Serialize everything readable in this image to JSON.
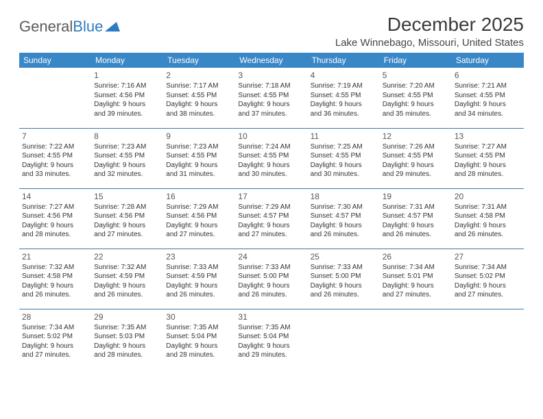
{
  "logo": {
    "part1": "General",
    "part2": "Blue"
  },
  "title": "December 2025",
  "location": "Lake Winnebago, Missouri, United States",
  "day_headers": [
    "Sunday",
    "Monday",
    "Tuesday",
    "Wednesday",
    "Thursday",
    "Friday",
    "Saturday"
  ],
  "colors": {
    "header_bg": "#3a87c7",
    "rule": "#3a78a8",
    "logo_blue": "#2d7bc0"
  },
  "weeks": [
    [
      null,
      {
        "n": "1",
        "sr": "Sunrise: 7:16 AM",
        "ss": "Sunset: 4:56 PM",
        "d1": "Daylight: 9 hours",
        "d2": "and 39 minutes."
      },
      {
        "n": "2",
        "sr": "Sunrise: 7:17 AM",
        "ss": "Sunset: 4:55 PM",
        "d1": "Daylight: 9 hours",
        "d2": "and 38 minutes."
      },
      {
        "n": "3",
        "sr": "Sunrise: 7:18 AM",
        "ss": "Sunset: 4:55 PM",
        "d1": "Daylight: 9 hours",
        "d2": "and 37 minutes."
      },
      {
        "n": "4",
        "sr": "Sunrise: 7:19 AM",
        "ss": "Sunset: 4:55 PM",
        "d1": "Daylight: 9 hours",
        "d2": "and 36 minutes."
      },
      {
        "n": "5",
        "sr": "Sunrise: 7:20 AM",
        "ss": "Sunset: 4:55 PM",
        "d1": "Daylight: 9 hours",
        "d2": "and 35 minutes."
      },
      {
        "n": "6",
        "sr": "Sunrise: 7:21 AM",
        "ss": "Sunset: 4:55 PM",
        "d1": "Daylight: 9 hours",
        "d2": "and 34 minutes."
      }
    ],
    [
      {
        "n": "7",
        "sr": "Sunrise: 7:22 AM",
        "ss": "Sunset: 4:55 PM",
        "d1": "Daylight: 9 hours",
        "d2": "and 33 minutes."
      },
      {
        "n": "8",
        "sr": "Sunrise: 7:23 AM",
        "ss": "Sunset: 4:55 PM",
        "d1": "Daylight: 9 hours",
        "d2": "and 32 minutes."
      },
      {
        "n": "9",
        "sr": "Sunrise: 7:23 AM",
        "ss": "Sunset: 4:55 PM",
        "d1": "Daylight: 9 hours",
        "d2": "and 31 minutes."
      },
      {
        "n": "10",
        "sr": "Sunrise: 7:24 AM",
        "ss": "Sunset: 4:55 PM",
        "d1": "Daylight: 9 hours",
        "d2": "and 30 minutes."
      },
      {
        "n": "11",
        "sr": "Sunrise: 7:25 AM",
        "ss": "Sunset: 4:55 PM",
        "d1": "Daylight: 9 hours",
        "d2": "and 30 minutes."
      },
      {
        "n": "12",
        "sr": "Sunrise: 7:26 AM",
        "ss": "Sunset: 4:55 PM",
        "d1": "Daylight: 9 hours",
        "d2": "and 29 minutes."
      },
      {
        "n": "13",
        "sr": "Sunrise: 7:27 AM",
        "ss": "Sunset: 4:55 PM",
        "d1": "Daylight: 9 hours",
        "d2": "and 28 minutes."
      }
    ],
    [
      {
        "n": "14",
        "sr": "Sunrise: 7:27 AM",
        "ss": "Sunset: 4:56 PM",
        "d1": "Daylight: 9 hours",
        "d2": "and 28 minutes."
      },
      {
        "n": "15",
        "sr": "Sunrise: 7:28 AM",
        "ss": "Sunset: 4:56 PM",
        "d1": "Daylight: 9 hours",
        "d2": "and 27 minutes."
      },
      {
        "n": "16",
        "sr": "Sunrise: 7:29 AM",
        "ss": "Sunset: 4:56 PM",
        "d1": "Daylight: 9 hours",
        "d2": "and 27 minutes."
      },
      {
        "n": "17",
        "sr": "Sunrise: 7:29 AM",
        "ss": "Sunset: 4:57 PM",
        "d1": "Daylight: 9 hours",
        "d2": "and 27 minutes."
      },
      {
        "n": "18",
        "sr": "Sunrise: 7:30 AM",
        "ss": "Sunset: 4:57 PM",
        "d1": "Daylight: 9 hours",
        "d2": "and 26 minutes."
      },
      {
        "n": "19",
        "sr": "Sunrise: 7:31 AM",
        "ss": "Sunset: 4:57 PM",
        "d1": "Daylight: 9 hours",
        "d2": "and 26 minutes."
      },
      {
        "n": "20",
        "sr": "Sunrise: 7:31 AM",
        "ss": "Sunset: 4:58 PM",
        "d1": "Daylight: 9 hours",
        "d2": "and 26 minutes."
      }
    ],
    [
      {
        "n": "21",
        "sr": "Sunrise: 7:32 AM",
        "ss": "Sunset: 4:58 PM",
        "d1": "Daylight: 9 hours",
        "d2": "and 26 minutes."
      },
      {
        "n": "22",
        "sr": "Sunrise: 7:32 AM",
        "ss": "Sunset: 4:59 PM",
        "d1": "Daylight: 9 hours",
        "d2": "and 26 minutes."
      },
      {
        "n": "23",
        "sr": "Sunrise: 7:33 AM",
        "ss": "Sunset: 4:59 PM",
        "d1": "Daylight: 9 hours",
        "d2": "and 26 minutes."
      },
      {
        "n": "24",
        "sr": "Sunrise: 7:33 AM",
        "ss": "Sunset: 5:00 PM",
        "d1": "Daylight: 9 hours",
        "d2": "and 26 minutes."
      },
      {
        "n": "25",
        "sr": "Sunrise: 7:33 AM",
        "ss": "Sunset: 5:00 PM",
        "d1": "Daylight: 9 hours",
        "d2": "and 26 minutes."
      },
      {
        "n": "26",
        "sr": "Sunrise: 7:34 AM",
        "ss": "Sunset: 5:01 PM",
        "d1": "Daylight: 9 hours",
        "d2": "and 27 minutes."
      },
      {
        "n": "27",
        "sr": "Sunrise: 7:34 AM",
        "ss": "Sunset: 5:02 PM",
        "d1": "Daylight: 9 hours",
        "d2": "and 27 minutes."
      }
    ],
    [
      {
        "n": "28",
        "sr": "Sunrise: 7:34 AM",
        "ss": "Sunset: 5:02 PM",
        "d1": "Daylight: 9 hours",
        "d2": "and 27 minutes."
      },
      {
        "n": "29",
        "sr": "Sunrise: 7:35 AM",
        "ss": "Sunset: 5:03 PM",
        "d1": "Daylight: 9 hours",
        "d2": "and 28 minutes."
      },
      {
        "n": "30",
        "sr": "Sunrise: 7:35 AM",
        "ss": "Sunset: 5:04 PM",
        "d1": "Daylight: 9 hours",
        "d2": "and 28 minutes."
      },
      {
        "n": "31",
        "sr": "Sunrise: 7:35 AM",
        "ss": "Sunset: 5:04 PM",
        "d1": "Daylight: 9 hours",
        "d2": "and 29 minutes."
      },
      null,
      null,
      null
    ]
  ]
}
